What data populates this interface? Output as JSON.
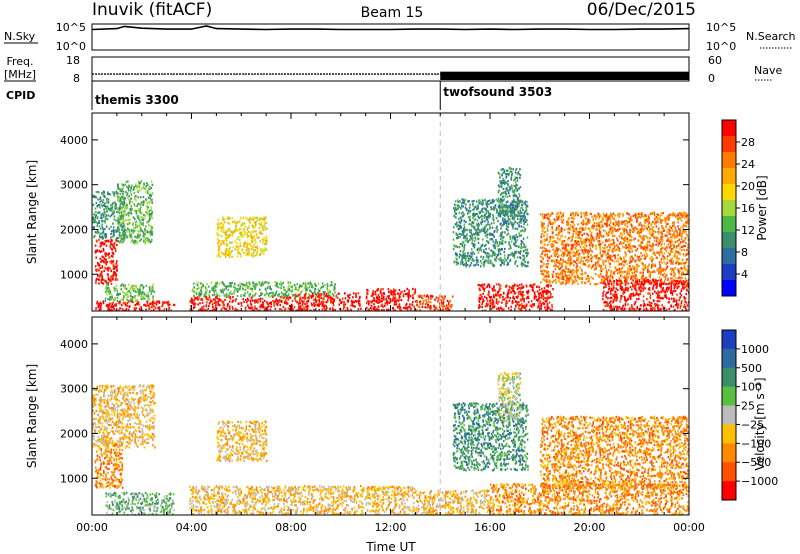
{
  "header": {
    "station": "Inuvik (fitACF)",
    "beam": "Beam 15",
    "date": "06/Dec/2015"
  },
  "top_panels": {
    "nsky_label": "N.Sky",
    "nsky_ticks": [
      "10^5",
      "10^0"
    ],
    "nsearch_ticks": [
      "10^5",
      "10^0"
    ],
    "nsearch_label": "N.Search",
    "freq_label_line1": "Freq.",
    "freq_label_line2": "[MHz]",
    "freq_ticks": [
      "18",
      "8"
    ],
    "nave_ticks": [
      "60",
      "0"
    ],
    "nave_label": "Nave",
    "cpid_label": "CPID",
    "cpid_programs": [
      {
        "name": "themis 3300",
        "start_hour": 0
      },
      {
        "name": "twofsound 3503",
        "start_hour": 14
      }
    ]
  },
  "power_colorbar": {
    "title": "Power [dB]",
    "ticks": [
      "28",
      "24",
      "20",
      "16",
      "12",
      "8",
      "4"
    ],
    "colors": [
      "#ff0000",
      "#ff3b00",
      "#ff7b00",
      "#ffaa00",
      "#ffd800",
      "#a8d93a",
      "#4cb848",
      "#3a8e6a",
      "#2d6ea0",
      "#1b3cc4",
      "#0000ff"
    ]
  },
  "velocity_colorbar": {
    "title": "Velocity [m s⁻¹]",
    "ticks": [
      "1000",
      "500",
      "100",
      "25",
      "−25",
      "−100",
      "−500",
      "−1000"
    ],
    "colors": [
      "#1c3fbf",
      "#2c6aa0",
      "#3a8e6a",
      "#58c040",
      "#bcbcbc",
      "#ffc000",
      "#ff8a00",
      "#ff5000",
      "#ff0000"
    ]
  },
  "chart_data": [
    {
      "type": "line",
      "name": "nsky-nsearch",
      "x_unit": "hours UT",
      "x": [
        0,
        1,
        1.3,
        2,
        3,
        4,
        4.6,
        5,
        6,
        7,
        8,
        9,
        10,
        11,
        12,
        13,
        14,
        15,
        16,
        17,
        18,
        19,
        20,
        21,
        22,
        23,
        24
      ],
      "log10_counts": [
        4.2,
        4.4,
        4.9,
        4.5,
        4.3,
        4.3,
        5.0,
        4.4,
        4.3,
        4.2,
        4.3,
        4.3,
        4.2,
        4.2,
        4.2,
        4.3,
        4.3,
        4.2,
        4.3,
        4.2,
        4.3,
        4.3,
        4.2,
        4.2,
        4.3,
        4.3,
        4.4
      ],
      "ylim_log10": [
        0,
        5
      ]
    },
    {
      "type": "line",
      "name": "frequency-nave",
      "x": [
        0,
        14,
        14,
        24
      ],
      "frequency_mhz": [
        10.5,
        10.5,
        10.5,
        10.5
      ],
      "nave_low_hours": [
        0,
        14
      ],
      "nave_low": 15,
      "nave_high_hours": [
        14,
        24
      ],
      "nave_high": 22,
      "ylim_freq": [
        8,
        18
      ],
      "ylim_nave": [
        0,
        60
      ]
    },
    {
      "type": "heatmap",
      "name": "power",
      "xlabel": "",
      "ylabel": "Slant Range [km]",
      "xlim_hours": [
        0,
        24
      ],
      "ylim_km": [
        180,
        4600
      ],
      "yticks": [
        1000,
        2000,
        3000,
        4000
      ],
      "program_change_hour": 14,
      "regions": [
        {
          "t0": 0.1,
          "t1": 1.0,
          "r0": 800,
          "r1": 1800,
          "level": 0
        },
        {
          "t0": 0.0,
          "t1": 1.3,
          "r0": 1800,
          "r1": 2900,
          "level": 7
        },
        {
          "t0": 1.0,
          "t1": 2.4,
          "r0": 1700,
          "r1": 3100,
          "level": 6
        },
        {
          "t0": 0.1,
          "t1": 3.3,
          "r0": 180,
          "r1": 420,
          "level": 0
        },
        {
          "t0": 0.5,
          "t1": 2.5,
          "r0": 420,
          "r1": 800,
          "level": 6
        },
        {
          "t0": 3.9,
          "t1": 8.0,
          "r0": 180,
          "r1": 520,
          "level": 0
        },
        {
          "t0": 4.0,
          "t1": 9.8,
          "r0": 520,
          "r1": 850,
          "level": 6
        },
        {
          "t0": 5.0,
          "t1": 7.0,
          "r0": 1400,
          "r1": 2300,
          "level": 4
        },
        {
          "t0": 8.0,
          "t1": 10.8,
          "r0": 180,
          "r1": 600,
          "level": 0
        },
        {
          "t0": 11.0,
          "t1": 13.0,
          "r0": 180,
          "r1": 700,
          "level": 0
        },
        {
          "t0": 13.0,
          "t1": 14.5,
          "r0": 180,
          "r1": 550,
          "level": 1
        },
        {
          "t0": 15.5,
          "t1": 18.5,
          "r0": 180,
          "r1": 800,
          "level": 0
        },
        {
          "t0": 14.5,
          "t1": 17.5,
          "r0": 1200,
          "r1": 2700,
          "level": 7
        },
        {
          "t0": 16.3,
          "t1": 17.2,
          "r0": 2300,
          "r1": 3400,
          "level": 7
        },
        {
          "t0": 18.0,
          "t1": 24.0,
          "r0": 800,
          "r1": 2400,
          "level": 2
        },
        {
          "t0": 20.5,
          "t1": 24.0,
          "r0": 180,
          "r1": 900,
          "level": 0
        }
      ]
    },
    {
      "type": "heatmap",
      "name": "velocity",
      "xlabel": "Time UT",
      "ylabel": "Slant Range [km]",
      "xlim_hours": [
        0,
        24
      ],
      "xticks": [
        "00:00",
        "04:00",
        "08:00",
        "12:00",
        "16:00",
        "20:00",
        "00:00"
      ],
      "ylim_km": [
        180,
        4600
      ],
      "yticks": [
        1000,
        2000,
        3000,
        4000
      ],
      "program_change_hour": 14,
      "regions": [
        {
          "t0": 0.1,
          "t1": 1.2,
          "r0": 800,
          "r1": 1800,
          "level": 6
        },
        {
          "t0": 0.0,
          "t1": 2.5,
          "r0": 1700,
          "r1": 3100,
          "level": 5
        },
        {
          "t0": 0.5,
          "t1": 3.3,
          "r0": 180,
          "r1": 700,
          "level": 3
        },
        {
          "t0": 3.9,
          "t1": 13.0,
          "r0": 180,
          "r1": 850,
          "level": 5
        },
        {
          "t0": 5.0,
          "t1": 7.0,
          "r0": 1400,
          "r1": 2300,
          "level": 5
        },
        {
          "t0": 13.0,
          "t1": 16.0,
          "r0": 180,
          "r1": 750,
          "level": 5
        },
        {
          "t0": 14.5,
          "t1": 17.5,
          "r0": 1200,
          "r1": 2700,
          "level": 2
        },
        {
          "t0": 16.3,
          "t1": 17.2,
          "r0": 2300,
          "r1": 3400,
          "level": 4
        },
        {
          "t0": 18.0,
          "t1": 24.0,
          "r0": 800,
          "r1": 2400,
          "level": 6
        },
        {
          "t0": 16.0,
          "t1": 24.0,
          "r0": 180,
          "r1": 900,
          "level": 6
        }
      ]
    }
  ]
}
